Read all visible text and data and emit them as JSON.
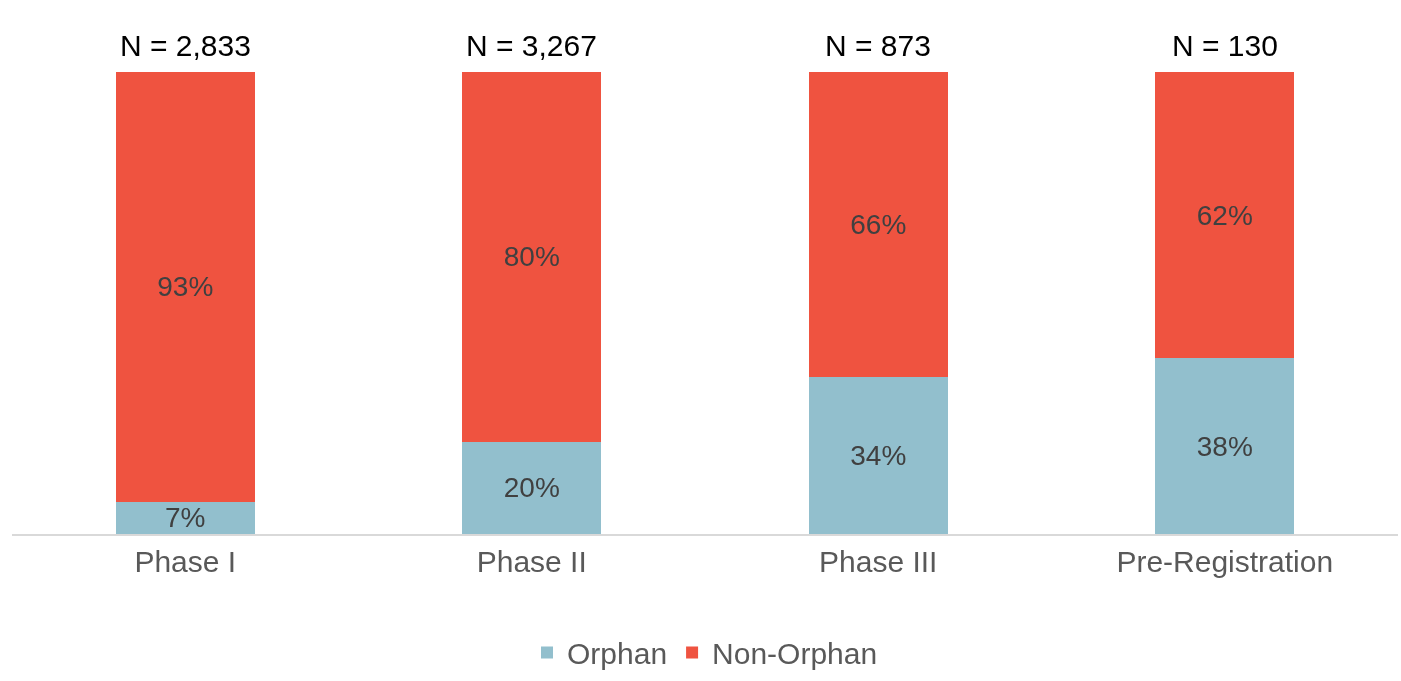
{
  "chart_data": {
    "type": "bar",
    "stacked": true,
    "categories": [
      "Phase I",
      "Phase II",
      "Phase III",
      "Pre-Registration"
    ],
    "series": [
      {
        "name": "Orphan",
        "color": "#92bfcd",
        "values": [
          7,
          20,
          34,
          38
        ],
        "value_labels": [
          "7%",
          "20%",
          "34%",
          "38%"
        ]
      },
      {
        "name": "Non-Orphan",
        "color": "#ef5340",
        "values": [
          93,
          80,
          66,
          62
        ],
        "value_labels": [
          "93%",
          "80%",
          "66%",
          "62%"
        ]
      }
    ],
    "annotations": [
      {
        "text": "N = 2,833",
        "x": "Phase I",
        "y": 100
      },
      {
        "text": "N = 3,267",
        "x": "Phase II",
        "y": 100
      },
      {
        "text": "N = 873",
        "x": "Phase III",
        "y": 100
      },
      {
        "text": "N = 130",
        "x": "Pre-Registration",
        "y": 100
      }
    ],
    "legend": "bottom"
  }
}
